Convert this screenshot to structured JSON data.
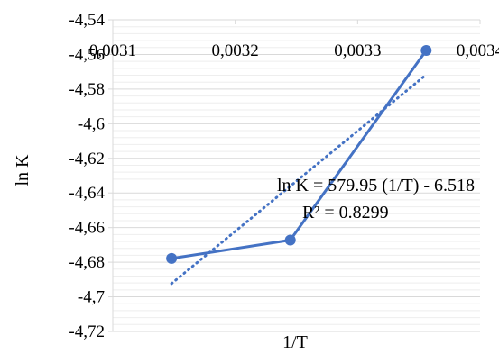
{
  "chart_data": {
    "type": "scatter",
    "title": "",
    "xlabel": "1/T",
    "ylabel": "ln K",
    "xlim": [
      0.0031,
      0.0034
    ],
    "ylim": [
      -4.72,
      -4.54
    ],
    "x_ticks": [
      "0,0031",
      "0,0032",
      "0,0033",
      "0,0034"
    ],
    "y_ticks": [
      "-4,54",
      "-4,56",
      "-4,58",
      "-4,6",
      "-4,62",
      "-4,64",
      "-4,66",
      "-4,68",
      "-4,7",
      "-4,72"
    ],
    "grid": true,
    "legend": "none",
    "series": [
      {
        "x": [
          0.003148,
          0.003245,
          0.003356
        ],
        "y": [
          -4.6778,
          -4.6672,
          -4.5577
        ],
        "color": "#4472C4",
        "line": "solid",
        "markers": true
      }
    ],
    "trendline": {
      "type": "linear",
      "slope": 579.95,
      "intercept": -6.518,
      "x_range": [
        0.003148,
        0.003356
      ],
      "color": "#4472C4",
      "line": "dotted"
    },
    "annotations": {
      "equation": "ln K = 579.95 (1/T) - 6.518",
      "r_squared": "R² = 0.8299"
    }
  }
}
